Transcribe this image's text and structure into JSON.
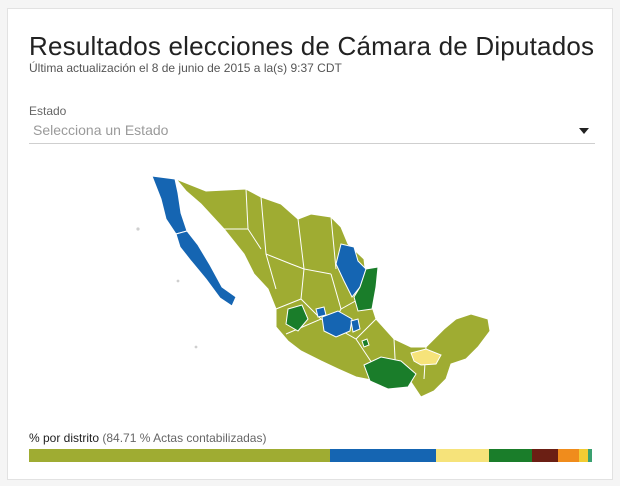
{
  "header": {
    "title": "Resultados elecciones de Cámara de Diputados",
    "subtitle": "Última actualización el 8 de junio de 2015 a la(s) 9:37 CDT"
  },
  "state_select": {
    "label": "Estado",
    "placeholder": "Selecciona un Estado"
  },
  "map": {
    "colors": {
      "pri": "#9fac32",
      "pan": "#1565b2",
      "pvem": "#1a7d2a",
      "prd": "#f6e37a",
      "border": "#ffffff"
    }
  },
  "distribution": {
    "label": "% por distrito",
    "detail": "(84.71 % Actas contabilizadas)",
    "segments": [
      {
        "color": "#9fac32",
        "share": 53.5
      },
      {
        "color": "#1565b2",
        "share": 18.8
      },
      {
        "color": "#f6e37a",
        "share": 9.4
      },
      {
        "color": "#1a7d2a",
        "share": 7.6
      },
      {
        "color": "#6b1f14",
        "share": 4.6
      },
      {
        "color": "#f08c1c",
        "share": 3.8
      },
      {
        "color": "#f3cc33",
        "share": 1.6
      },
      {
        "color": "#3aa070",
        "share": 0.7
      }
    ]
  }
}
